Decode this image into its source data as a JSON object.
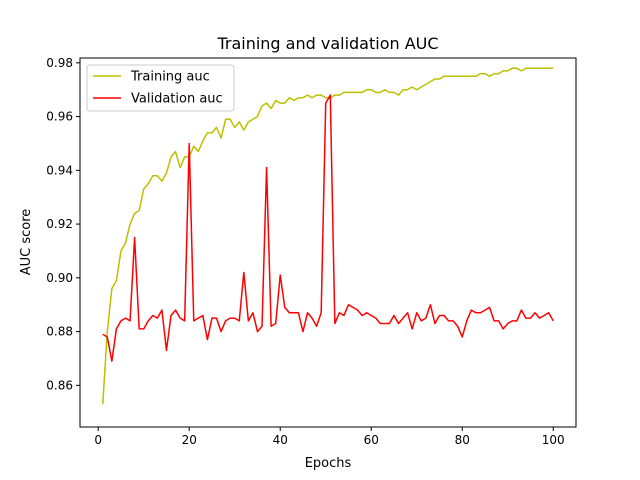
{
  "chart_data": {
    "type": "line",
    "title": "Training and validation AUC",
    "xlabel": "Epochs",
    "ylabel": "AUC score",
    "xlim": [
      -4,
      105
    ],
    "ylim": [
      0.8445,
      0.9818
    ],
    "xticks": [
      0,
      20,
      40,
      60,
      80,
      100
    ],
    "yticks": [
      0.86,
      0.88,
      0.9,
      0.92,
      0.94,
      0.96,
      0.98
    ],
    "xtick_labels": [
      "0",
      "20",
      "40",
      "60",
      "80",
      "100"
    ],
    "ytick_labels": [
      "0.86",
      "0.88",
      "0.90",
      "0.92",
      "0.94",
      "0.96",
      "0.98"
    ],
    "grid": false,
    "legend_position": "upper left",
    "x": [
      1,
      2,
      3,
      4,
      5,
      6,
      7,
      8,
      9,
      10,
      11,
      12,
      13,
      14,
      15,
      16,
      17,
      18,
      19,
      20,
      21,
      22,
      23,
      24,
      25,
      26,
      27,
      28,
      29,
      30,
      31,
      32,
      33,
      34,
      35,
      36,
      37,
      38,
      39,
      40,
      41,
      42,
      43,
      44,
      45,
      46,
      47,
      48,
      49,
      50,
      51,
      52,
      53,
      54,
      55,
      56,
      57,
      58,
      59,
      60,
      61,
      62,
      63,
      64,
      65,
      66,
      67,
      68,
      69,
      70,
      71,
      72,
      73,
      74,
      75,
      76,
      77,
      78,
      79,
      80,
      81,
      82,
      83,
      84,
      85,
      86,
      87,
      88,
      89,
      90,
      91,
      92,
      93,
      94,
      95,
      96,
      97,
      98,
      99,
      100
    ],
    "series": [
      {
        "name": "Training auc",
        "color": "#bfbf00",
        "values": [
          0.853,
          0.88,
          0.896,
          0.899,
          0.91,
          0.913,
          0.92,
          0.924,
          0.925,
          0.933,
          0.935,
          0.938,
          0.938,
          0.936,
          0.939,
          0.945,
          0.947,
          0.941,
          0.945,
          0.945,
          0.949,
          0.947,
          0.951,
          0.954,
          0.954,
          0.956,
          0.952,
          0.959,
          0.959,
          0.956,
          0.958,
          0.955,
          0.958,
          0.959,
          0.96,
          0.964,
          0.965,
          0.963,
          0.966,
          0.965,
          0.965,
          0.967,
          0.966,
          0.967,
          0.967,
          0.968,
          0.967,
          0.968,
          0.968,
          0.967,
          0.967,
          0.968,
          0.968,
          0.969,
          0.969,
          0.969,
          0.969,
          0.969,
          0.97,
          0.97,
          0.969,
          0.969,
          0.97,
          0.969,
          0.969,
          0.968,
          0.97,
          0.97,
          0.971,
          0.97,
          0.971,
          0.972,
          0.973,
          0.974,
          0.974,
          0.975,
          0.975,
          0.975,
          0.975,
          0.975,
          0.975,
          0.975,
          0.975,
          0.976,
          0.976,
          0.975,
          0.976,
          0.976,
          0.977,
          0.977,
          0.978,
          0.978,
          0.977,
          0.978,
          0.978,
          0.978,
          0.978,
          0.978,
          0.978,
          0.978
        ]
      },
      {
        "name": "Validation auc",
        "color": "#ff0000",
        "values": [
          0.879,
          0.878,
          0.869,
          0.881,
          0.884,
          0.885,
          0.884,
          0.915,
          0.881,
          0.881,
          0.884,
          0.886,
          0.885,
          0.888,
          0.873,
          0.886,
          0.888,
          0.885,
          0.884,
          0.95,
          0.884,
          0.885,
          0.886,
          0.877,
          0.885,
          0.885,
          0.88,
          0.884,
          0.885,
          0.885,
          0.884,
          0.902,
          0.884,
          0.887,
          0.88,
          0.882,
          0.941,
          0.882,
          0.883,
          0.901,
          0.889,
          0.887,
          0.887,
          0.887,
          0.88,
          0.887,
          0.885,
          0.882,
          0.887,
          0.965,
          0.968,
          0.883,
          0.887,
          0.886,
          0.89,
          0.889,
          0.888,
          0.886,
          0.887,
          0.886,
          0.885,
          0.883,
          0.883,
          0.883,
          0.886,
          0.883,
          0.885,
          0.887,
          0.881,
          0.887,
          0.884,
          0.885,
          0.89,
          0.883,
          0.886,
          0.886,
          0.884,
          0.884,
          0.882,
          0.878,
          0.884,
          0.888,
          0.887,
          0.887,
          0.888,
          0.889,
          0.884,
          0.884,
          0.881,
          0.883,
          0.884,
          0.884,
          0.888,
          0.885,
          0.885,
          0.887,
          0.885,
          0.886,
          0.887,
          0.884
        ]
      }
    ]
  }
}
